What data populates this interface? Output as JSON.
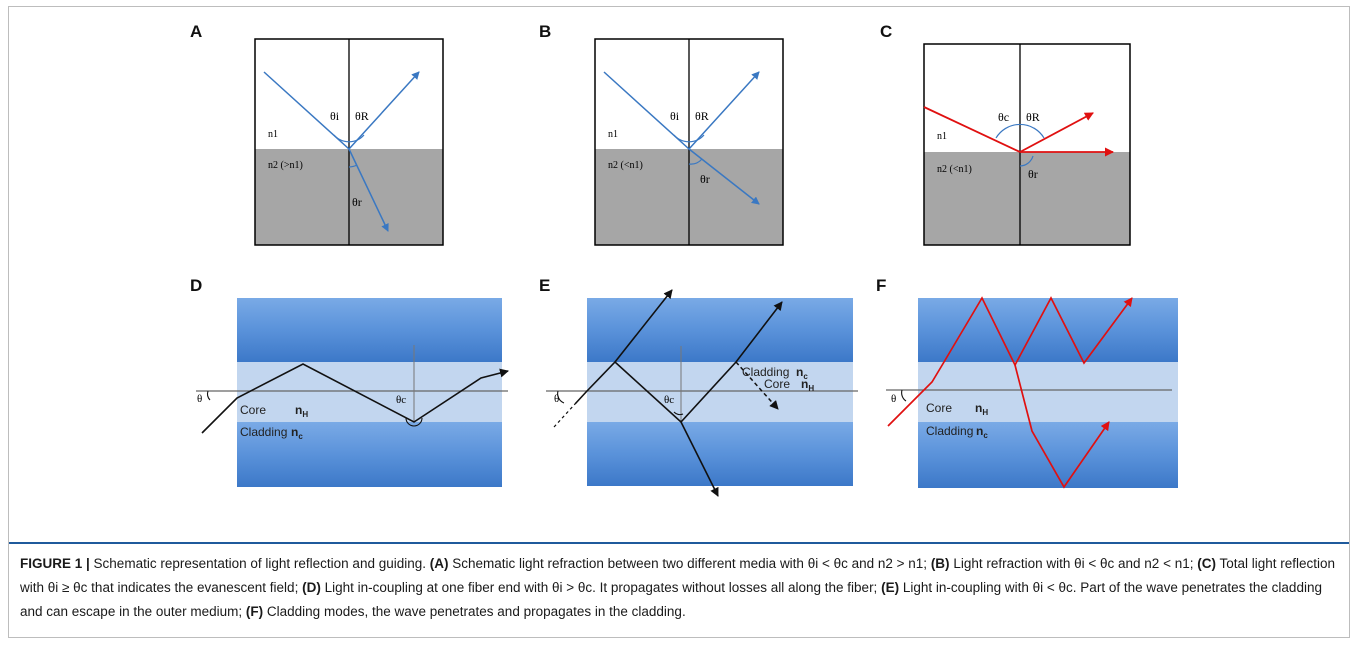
{
  "panels": {
    "A": {
      "letter": "A",
      "theta_i": "θi",
      "theta_R": "θR",
      "theta_r": "θr",
      "n1": "n1",
      "n2": "n2 (>n1)"
    },
    "B": {
      "letter": "B",
      "theta_i": "θi",
      "theta_R": "θR",
      "theta_r": "θr",
      "n1": "n1",
      "n2": "n2 (<n1)"
    },
    "C": {
      "letter": "C",
      "theta_c": "θc",
      "theta_R": "θR",
      "theta_r": "θr",
      "n1": "n1",
      "n2": "n2 (<n1)"
    },
    "D": {
      "letter": "D",
      "theta": "θ",
      "theta_c": "θc",
      "core": "Core",
      "core_n": "n",
      "core_sub": "H",
      "cladding": "Cladding",
      "cladding_n": "n",
      "cladding_sub": "c"
    },
    "E": {
      "letter": "E",
      "theta": "θ",
      "theta_c": "θc",
      "core": "Core",
      "core_n": "n",
      "core_sub": "H",
      "cladding": "Cladding",
      "cladding_n": "n",
      "cladding_sub": "c"
    },
    "F": {
      "letter": "F",
      "theta": "θ",
      "core": "Core",
      "core_n": "n",
      "core_sub": "H",
      "cladding": "Cladding",
      "cladding_n": "n",
      "cladding_sub": "c"
    }
  },
  "caption": {
    "label": "FIGURE 1 |",
    "intro": " Schematic representation of light reflection and guiding.",
    "a_tag": "(A)",
    "a_text": " Schematic light refraction between two different media with θi < θc and n2 > n1;",
    "b_tag": "(B)",
    "b_text": " Light refraction with θi < θc and n2 < n1;",
    "c_tag": "(C)",
    "c_text": " Total light reflection with θi ≥ θc that indicates the evanescent field;",
    "d_tag": "(D)",
    "d_text": " Light in-coupling at one fiber end with θi > θc. It propagates without losses all along the fiber;",
    "e_tag": "(E)",
    "e_text": " Light in-coupling with θi < θc. Part of the wave penetrates the cladding and can escape in the outer medium;",
    "f_tag": "(F)",
    "f_text": " Cladding modes, the wave penetrates and propagates in the cladding."
  },
  "colors": {
    "blue_ray": "#3a78c2",
    "red_ray": "#e01010",
    "gray_medium": "#a6a6a6",
    "cladding_blue": "#5b93d9",
    "core_blue": "#c2d6ef"
  }
}
